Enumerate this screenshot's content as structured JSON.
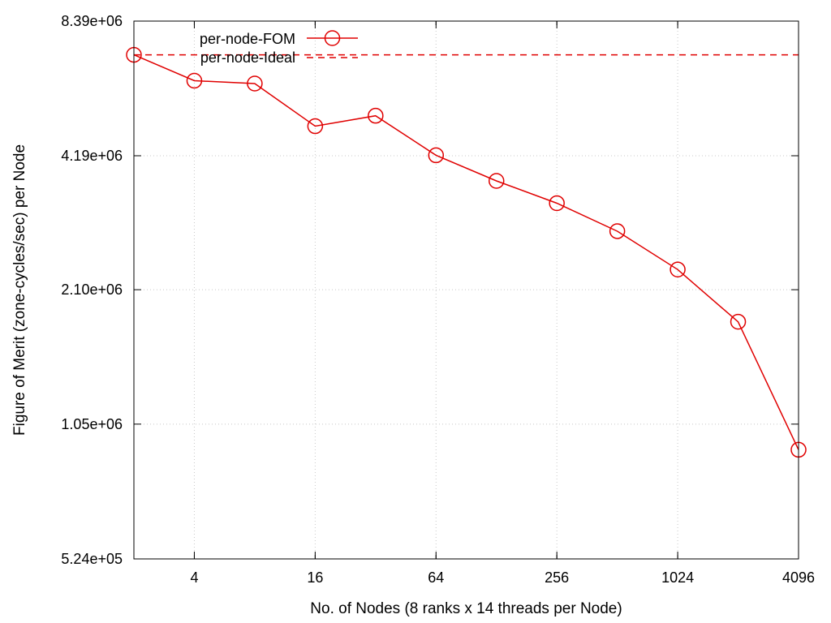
{
  "chart_data": {
    "type": "line",
    "xlabel": "No. of Nodes (8 ranks x 14 threads per Node)",
    "ylabel": "Figure of Merit (zone-cycles/sec) per Node",
    "x_scale": "log2",
    "y_scale": "log2",
    "xlim": [
      2,
      4096
    ],
    "ylim": [
      524000,
      8390000
    ],
    "x_ticks": [
      4,
      16,
      64,
      256,
      1024,
      4096
    ],
    "x_tick_labels": [
      "4",
      "16",
      "64",
      "256",
      "1024",
      "4096"
    ],
    "y_ticks": [
      524000,
      1050000,
      2100000,
      4190000,
      8390000
    ],
    "y_tick_labels": [
      "5.24e+05",
      "1.05e+06",
      "2.10e+06",
      "4.19e+06",
      "8.39e+06"
    ],
    "grid": true,
    "legend_position": "top-left",
    "series": [
      {
        "name": "per-node-FOM",
        "style": "solid-with-circles",
        "color": "#e00000",
        "x": [
          2,
          4,
          8,
          16,
          32,
          64,
          128,
          256,
          512,
          1024,
          2048,
          4096
        ],
        "y": [
          7050000,
          6170000,
          6080000,
          4880000,
          5150000,
          4200000,
          3680000,
          3280000,
          2840000,
          2330000,
          1780000,
          920000
        ]
      },
      {
        "name": "per-node-Ideal",
        "style": "dashed",
        "color": "#e00000",
        "x": [
          2,
          4096
        ],
        "y": [
          7050000,
          7050000
        ]
      }
    ]
  }
}
